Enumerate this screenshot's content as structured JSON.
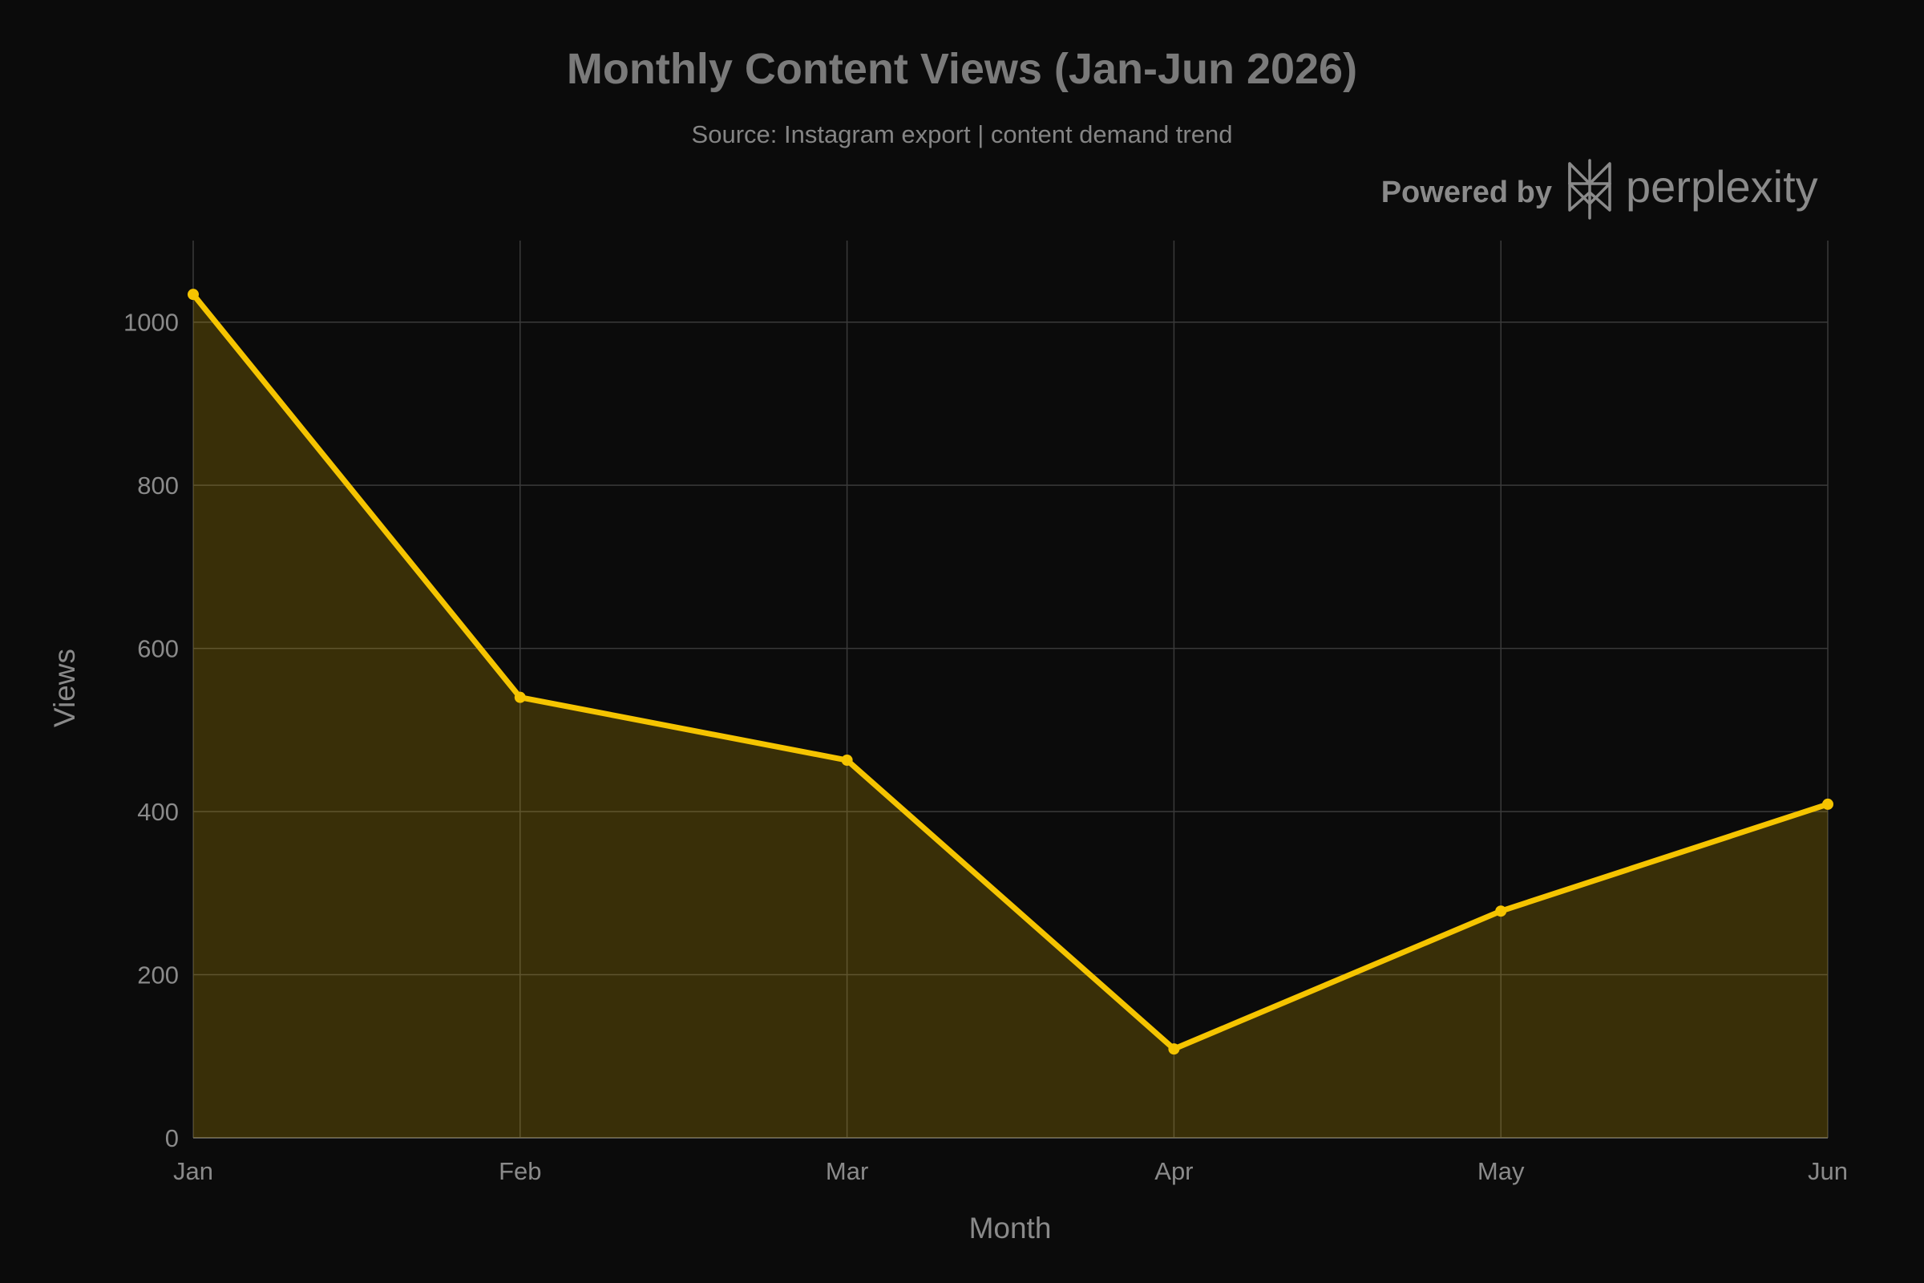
{
  "chart_data": {
    "type": "area",
    "title": "Monthly Content Views (Jan-Jun 2026)",
    "subtitle": "Source: Instagram export | content demand trend",
    "xlabel": "Month",
    "ylabel": "Views",
    "categories": [
      "Jan",
      "Feb",
      "Mar",
      "Apr",
      "May",
      "Jun"
    ],
    "series": [
      {
        "values": [
          1034,
          540,
          463,
          109,
          278,
          409
        ]
      }
    ],
    "ylim": [
      0,
      1100
    ],
    "yticks": [
      0,
      200,
      400,
      600,
      800,
      1000
    ],
    "ytick_labels": [
      "0",
      "200",
      "400",
      "600",
      "800",
      "1000"
    ],
    "grid": true,
    "legend": "none",
    "colors": {
      "background": "#0b0b0b",
      "line": "#f5c400",
      "fill": "#f5c400",
      "grid": "#3a3a3a",
      "text": "#8a8a8a"
    }
  },
  "branding": {
    "powered_by": "Powered by",
    "name": "perplexity",
    "logo_icon": "perplexity-logo-icon"
  }
}
